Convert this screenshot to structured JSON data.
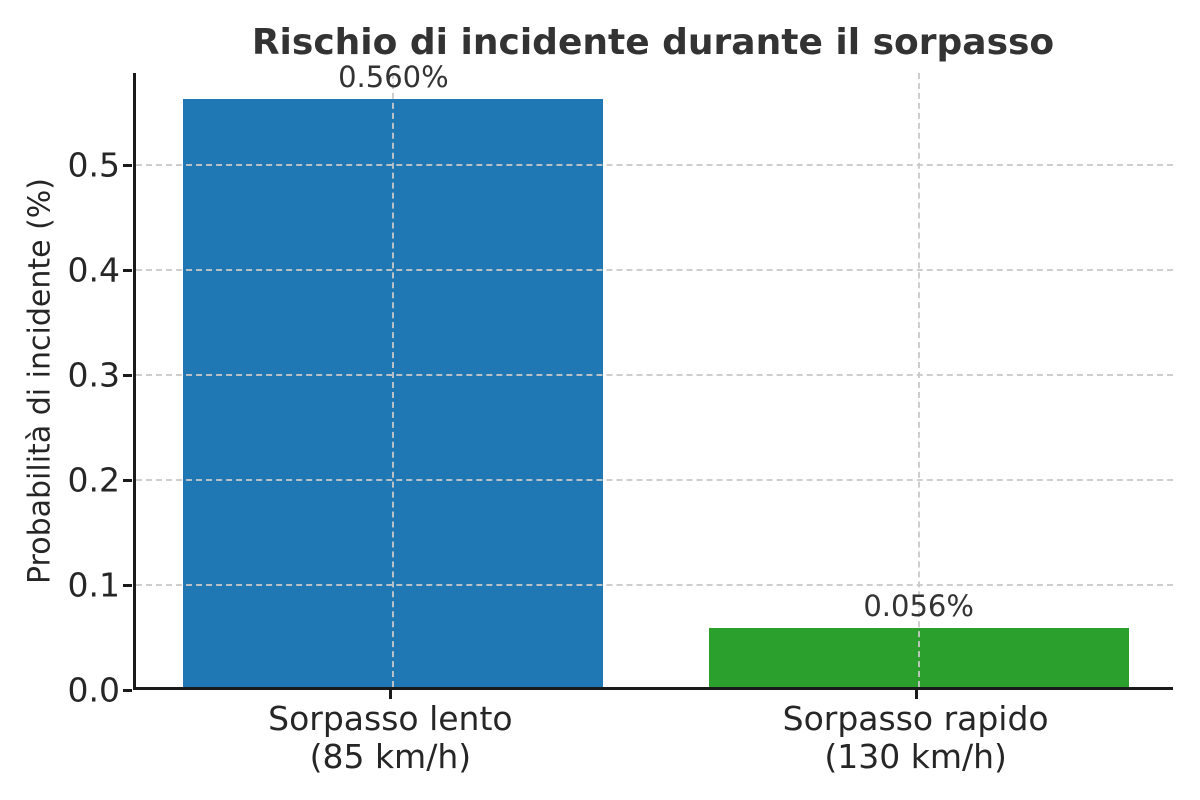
{
  "chart_data": {
    "type": "bar",
    "title": "Rischio di incidente durante il sorpasso",
    "ylabel": "Probabilità di incidente (%)",
    "xlabel": "",
    "categories": [
      "Sorpasso lento\n(85 km/h)",
      "Sorpasso rapido\n(130 km/h)"
    ],
    "values": [
      0.56,
      0.056
    ],
    "bar_labels": [
      "0.560%",
      "0.056%"
    ],
    "bar_colors": [
      "#1f77b4",
      "#2ca02c"
    ],
    "x_positions": [
      0,
      1
    ],
    "bar_width": 0.8,
    "xlim": [
      -0.49,
      1.49
    ],
    "ylim": [
      0,
      0.588
    ],
    "yticks": [
      0,
      0.1,
      0.2,
      0.3,
      0.4,
      0.5
    ],
    "ytick_labels": [
      "0.0",
      "0.1",
      "0.2",
      "0.3",
      "0.4",
      "0.5"
    ],
    "grid": {
      "axis": "both",
      "style": "dashed",
      "color": "#c9c9c9"
    },
    "legend": null,
    "colors": {
      "title_text": "#333333",
      "tick_text": "#262626",
      "spine": "#1a1a1a",
      "background": "#ffffff"
    }
  }
}
